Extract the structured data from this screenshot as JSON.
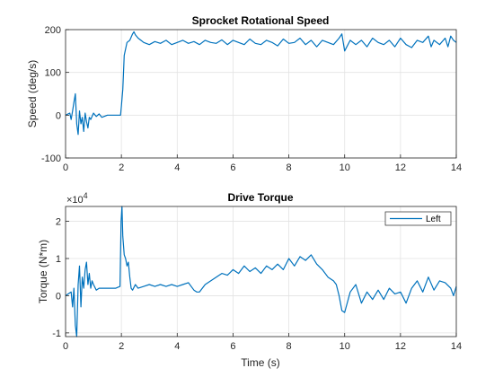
{
  "chart_data": [
    {
      "type": "line",
      "title": "Sprocket Rotational Speed",
      "xlabel": "",
      "ylabel": "Speed (deg/s)",
      "xlim": [
        0,
        14
      ],
      "ylim": [
        -100,
        200
      ],
      "xticks": [
        "0",
        "2",
        "4",
        "6",
        "8",
        "10",
        "12",
        "14"
      ],
      "yticks": [
        "-100",
        "0",
        "100",
        "200"
      ],
      "grid": true,
      "color": "#0072BD",
      "series": [
        {
          "x": [
            0,
            0.15,
            0.2,
            0.25,
            0.3,
            0.35,
            0.4,
            0.45,
            0.5,
            0.55,
            0.6,
            0.65,
            0.7,
            0.75,
            0.8,
            0.85,
            0.9,
            1.0,
            1.1,
            1.2,
            1.3,
            1.5,
            1.7,
            1.9,
            1.97,
            2.0,
            2.05,
            2.1,
            2.2,
            2.3,
            2.4,
            2.45,
            2.5,
            2.6,
            2.7,
            2.8,
            3.0,
            3.2,
            3.4,
            3.6,
            3.8,
            4.0,
            4.2,
            4.4,
            4.6,
            4.8,
            5.0,
            5.2,
            5.4,
            5.6,
            5.8,
            6.0,
            6.2,
            6.4,
            6.6,
            6.8,
            7.0,
            7.2,
            7.4,
            7.6,
            7.8,
            8.0,
            8.2,
            8.4,
            8.6,
            8.8,
            9.0,
            9.2,
            9.4,
            9.6,
            9.8,
            9.9,
            10.0,
            10.2,
            10.4,
            10.6,
            10.8,
            11.0,
            11.2,
            11.4,
            11.6,
            11.8,
            12.0,
            12.2,
            12.4,
            12.6,
            12.8,
            13.0,
            13.1,
            13.2,
            13.4,
            13.6,
            13.7,
            13.8,
            13.9,
            14.0
          ],
          "y": [
            0,
            5,
            -10,
            10,
            30,
            50,
            -20,
            -45,
            10,
            -20,
            -5,
            -38,
            5,
            -15,
            -30,
            -5,
            -10,
            5,
            -3,
            3,
            -5,
            0,
            0,
            0,
            0,
            20,
            60,
            140,
            170,
            175,
            190,
            195,
            188,
            180,
            175,
            170,
            165,
            172,
            168,
            175,
            165,
            170,
            175,
            168,
            172,
            165,
            175,
            170,
            168,
            176,
            165,
            175,
            170,
            165,
            178,
            168,
            165,
            175,
            170,
            162,
            178,
            168,
            170,
            180,
            165,
            175,
            160,
            175,
            170,
            165,
            180,
            190,
            150,
            175,
            165,
            175,
            160,
            180,
            170,
            165,
            175,
            160,
            180,
            165,
            158,
            175,
            170,
            185,
            160,
            175,
            165,
            180,
            160,
            185,
            175,
            170
          ]
        }
      ]
    },
    {
      "type": "line",
      "title": "Drive Torque",
      "xlabel": "Time (s)",
      "ylabel": "Torque (N*m)",
      "exponent_label": "×10",
      "exponent_power": "4",
      "xlim": [
        0,
        14
      ],
      "ylim": [
        -1.1,
        2.4
      ],
      "xticks": [
        "0",
        "2",
        "4",
        "6",
        "8",
        "10",
        "12",
        "14"
      ],
      "yticks": [
        "-1",
        "0",
        "1",
        "2"
      ],
      "grid": true,
      "legend": "top-right",
      "color": "#0072BD",
      "series": [
        {
          "name": "Left",
          "x": [
            0,
            0.2,
            0.25,
            0.3,
            0.35,
            0.4,
            0.45,
            0.5,
            0.55,
            0.6,
            0.65,
            0.7,
            0.75,
            0.8,
            0.85,
            0.9,
            0.95,
            1.0,
            1.1,
            1.2,
            1.4,
            1.6,
            1.8,
            1.95,
            1.99,
            2.02,
            2.05,
            2.1,
            2.15,
            2.2,
            2.25,
            2.3,
            2.35,
            2.4,
            2.5,
            2.6,
            2.8,
            3.0,
            3.2,
            3.4,
            3.6,
            3.8,
            4.0,
            4.2,
            4.4,
            4.6,
            4.7,
            4.8,
            5.0,
            5.2,
            5.4,
            5.6,
            5.8,
            6.0,
            6.2,
            6.4,
            6.6,
            6.8,
            7.0,
            7.2,
            7.4,
            7.6,
            7.8,
            8.0,
            8.2,
            8.4,
            8.6,
            8.8,
            9.0,
            9.2,
            9.4,
            9.6,
            9.7,
            9.8,
            9.9,
            10.0,
            10.2,
            10.4,
            10.6,
            10.8,
            11.0,
            11.2,
            11.4,
            11.6,
            11.8,
            12.0,
            12.2,
            12.4,
            12.6,
            12.8,
            13.0,
            13.2,
            13.4,
            13.6,
            13.8,
            13.9,
            14.0
          ],
          "y": [
            0,
            0.1,
            -0.3,
            0.2,
            -0.8,
            -1.1,
            0.3,
            0.8,
            -0.3,
            0.5,
            0.2,
            0.7,
            0.9,
            0.3,
            0.6,
            0.2,
            0.4,
            0.3,
            0.15,
            0.2,
            0.2,
            0.2,
            0.2,
            0.25,
            2.0,
            2.4,
            1.6,
            1.1,
            1.0,
            0.8,
            0.9,
            0.5,
            0.2,
            0.15,
            0.3,
            0.2,
            0.25,
            0.3,
            0.25,
            0.3,
            0.25,
            0.3,
            0.25,
            0.3,
            0.35,
            0.15,
            0.1,
            0.1,
            0.3,
            0.4,
            0.5,
            0.6,
            0.55,
            0.7,
            0.6,
            0.8,
            0.65,
            0.75,
            0.6,
            0.8,
            0.7,
            0.85,
            0.7,
            1.0,
            0.8,
            1.05,
            0.95,
            1.1,
            0.85,
            0.7,
            0.5,
            0.4,
            0.3,
            0.0,
            -0.4,
            -0.45,
            0.1,
            0.3,
            -0.2,
            0.1,
            -0.1,
            0.15,
            -0.1,
            0.2,
            0.05,
            0.1,
            -0.2,
            0.2,
            0.4,
            0.1,
            0.5,
            0.15,
            0.4,
            0.35,
            0.2,
            0.0,
            0.25
          ]
        }
      ]
    }
  ]
}
